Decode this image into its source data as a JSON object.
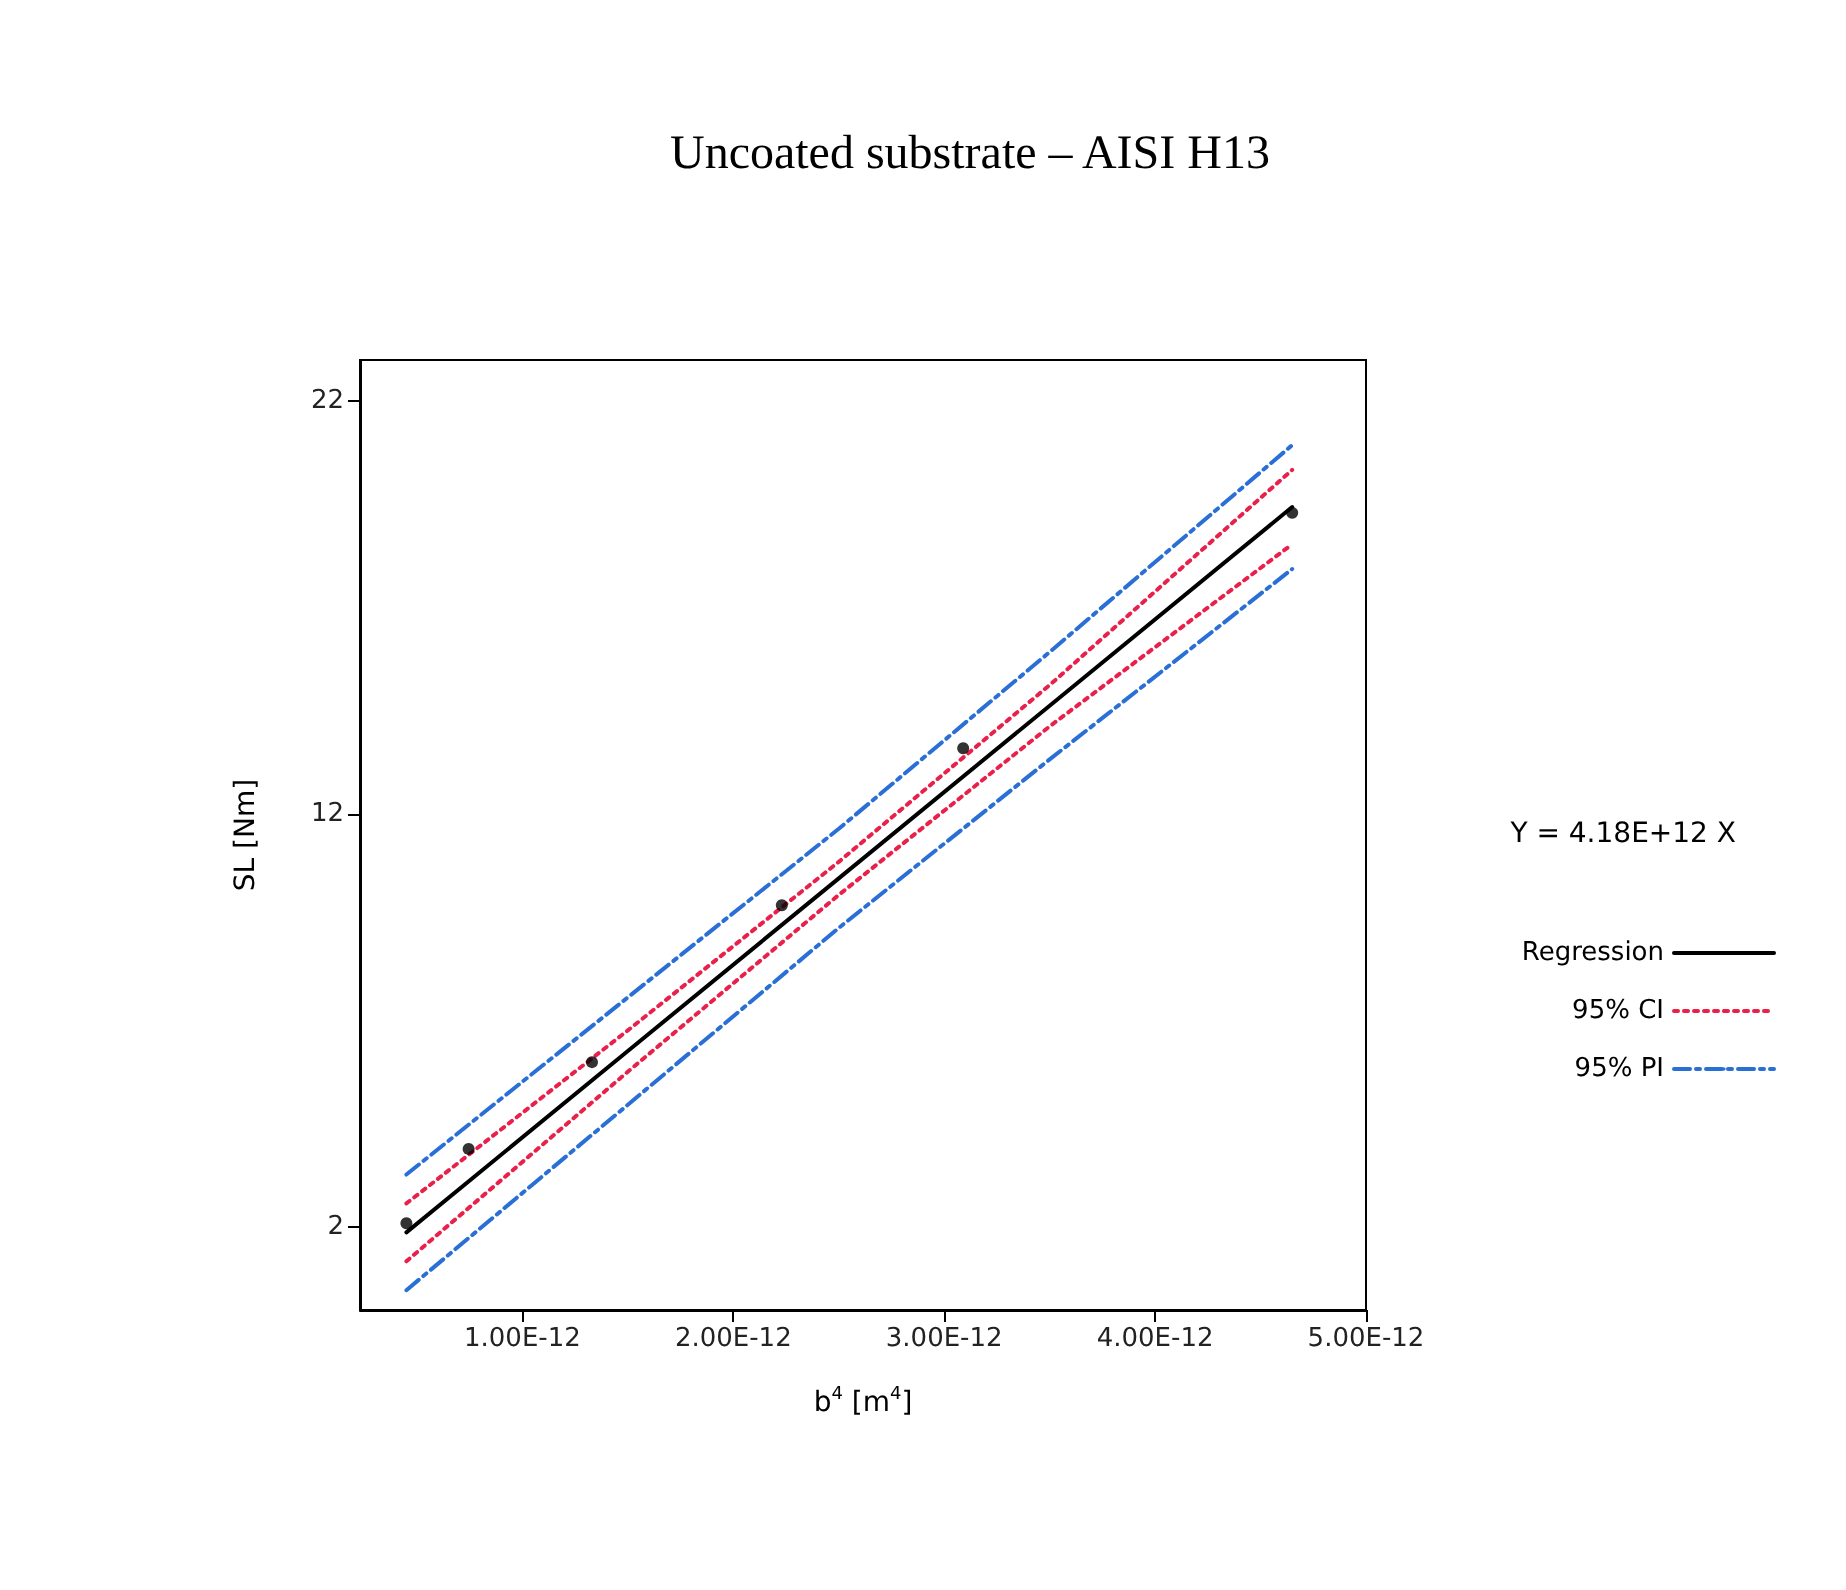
{
  "chart_data": {
    "type": "line",
    "title": "Uncoated substrate – AISI H13",
    "xlabel": "b$^{4}$ [m$^{4}$]",
    "ylabel": "SL [Nm]",
    "xlim": [
      2.3e-13,
      5e-12
    ],
    "xticks": [
      {
        "value": 1e-12,
        "label": "1.00E-12"
      },
      {
        "value": 2e-12,
        "label": "2.00E-12"
      },
      {
        "value": 3e-12,
        "label": "3.00E-12"
      },
      {
        "value": 4e-12,
        "label": "4.00E-12"
      },
      {
        "value": 5e-12,
        "label": "5.00E-12"
      }
    ],
    "ylim": [
      0,
      23
    ],
    "yticks": [
      2,
      12,
      22
    ],
    "grid": false,
    "legend": "right",
    "marker": "none",
    "annotations": [
      "Y = 4.18E+12 X"
    ],
    "series": [
      {
        "type": "scatter",
        "marker": "circle",
        "color": "#000000",
        "x": [
          4.5e-13,
          7.45e-13,
          1.33e-12,
          2.23e-12,
          3.09e-12,
          4.65e-12
        ],
        "values": [
          2.1,
          3.9,
          6.0,
          9.8,
          13.6,
          19.3
        ]
      },
      {
        "name": "Regression",
        "color": "#000000",
        "line_style": "solid",
        "x": [
          4.5e-13,
          1.5e-12,
          2.5e-12,
          3.5e-12,
          4.65e-12
        ],
        "values": [
          1.88,
          6.27,
          10.45,
          14.63,
          19.44
        ]
      },
      {
        "name": "95% CI",
        "color": "#e8204a",
        "line_style": "dotted",
        "x": [
          4.5e-13,
          1.5e-12,
          2.5e-12,
          3.5e-12,
          4.65e-12
        ],
        "values": [
          2.58,
          6.77,
          10.85,
          15.13,
          20.34
        ]
      },
      {
        "color": "#e8204a",
        "line_style": "dotted",
        "x": [
          4.5e-13,
          1.5e-12,
          2.5e-12,
          3.5e-12,
          4.65e-12
        ],
        "values": [
          1.18,
          5.77,
          10.05,
          14.13,
          18.54
        ]
      },
      {
        "name": "95% PI",
        "color": "#2a6fd6",
        "line_style": "dashed",
        "x": [
          4.5e-13,
          1.5e-12,
          2.5e-12,
          3.5e-12,
          4.65e-12
        ],
        "values": [
          3.28,
          7.57,
          11.65,
          15.93,
          20.94
        ]
      },
      {
        "color": "#2a6fd6",
        "line_style": "dashed",
        "x": [
          4.5e-13,
          1.5e-12,
          2.5e-12,
          3.5e-12,
          4.65e-12
        ],
        "values": [
          0.48,
          4.97,
          9.25,
          13.33,
          17.94
        ]
      }
    ]
  }
}
